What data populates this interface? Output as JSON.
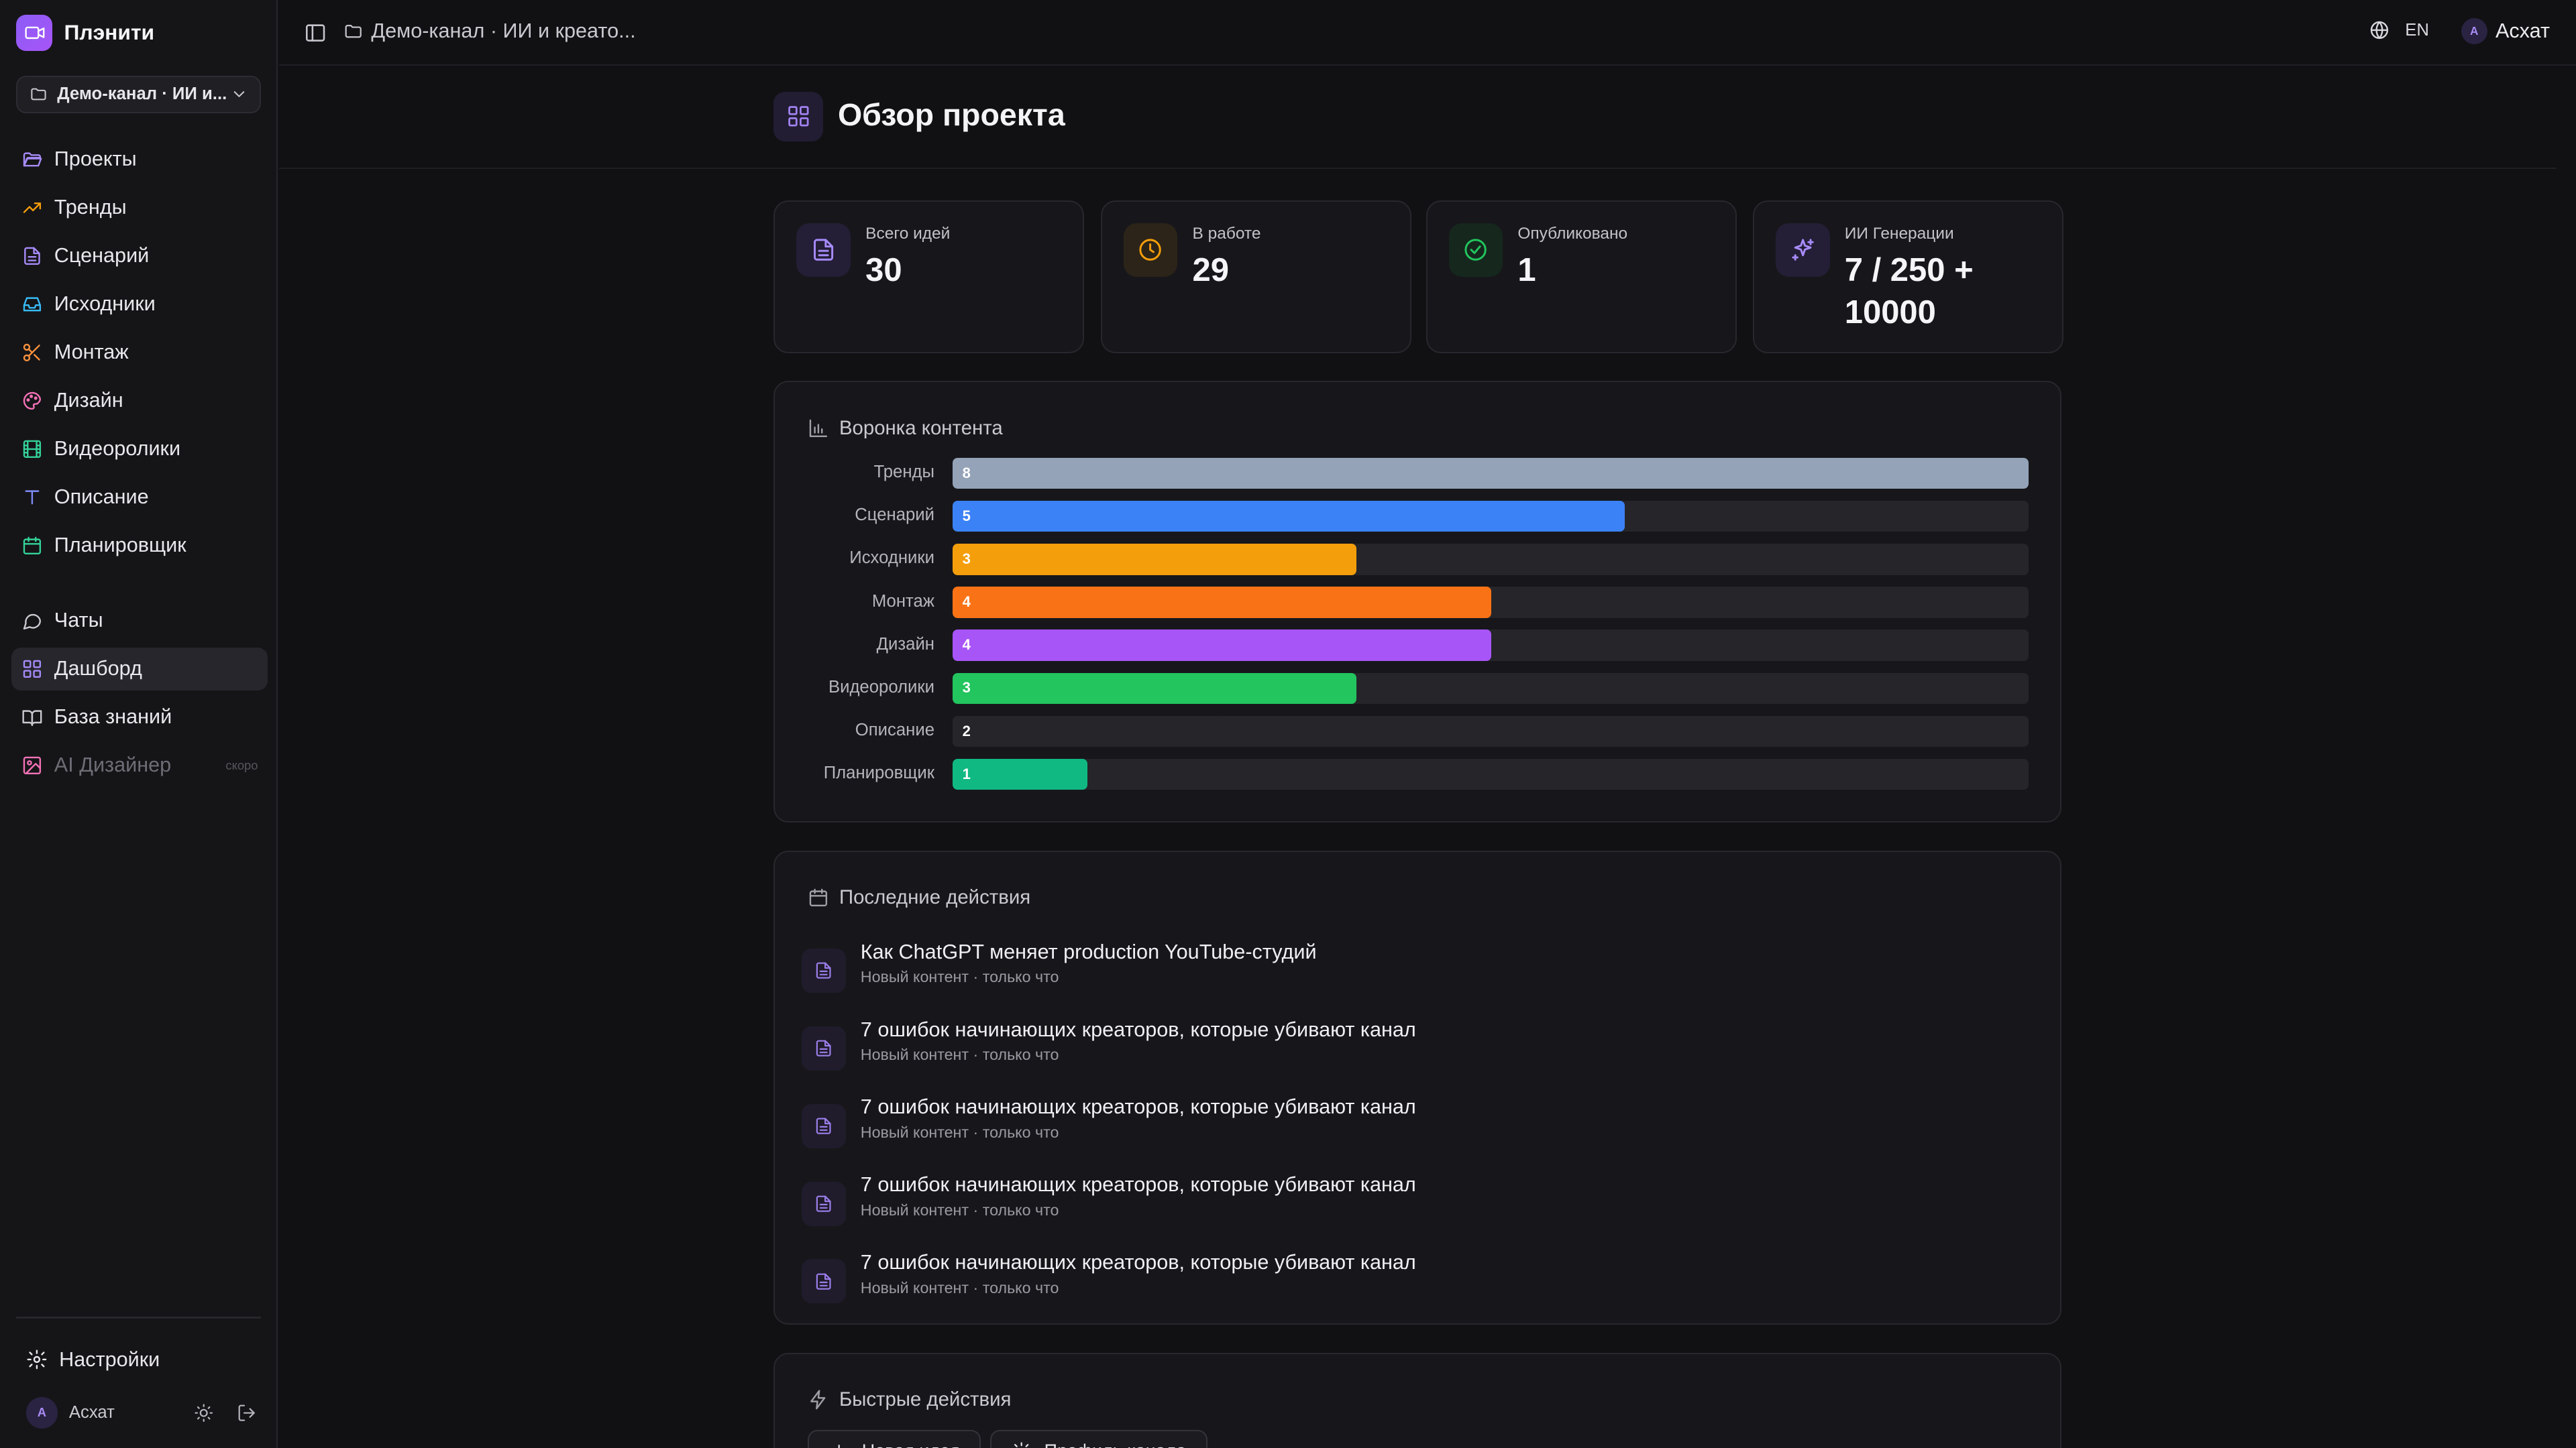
{
  "brand": {
    "name": "Плэнити"
  },
  "project_select": {
    "label": "Демо-канал · ИИ и..."
  },
  "nav_main": [
    {
      "label": "Проекты",
      "icon": "folder-open-icon",
      "color": "#a78bfa"
    },
    {
      "label": "Тренды",
      "icon": "trending-up-icon",
      "color": "#f59e0b"
    },
    {
      "label": "Сценарий",
      "icon": "file-text-icon",
      "color": "#a78bfa"
    },
    {
      "label": "Исходники",
      "icon": "inbox-icon",
      "color": "#38bdf8"
    },
    {
      "label": "Монтаж",
      "icon": "scissors-icon",
      "color": "#fb923c"
    },
    {
      "label": "Дизайн",
      "icon": "palette-icon",
      "color": "#f472b6"
    },
    {
      "label": "Видеоролики",
      "icon": "film-icon",
      "color": "#34d399"
    },
    {
      "label": "Описание",
      "icon": "type-icon",
      "color": "#818cf8"
    },
    {
      "label": "Планировщик",
      "icon": "calendar-icon",
      "color": "#34d399"
    }
  ],
  "nav_secondary": [
    {
      "label": "Чаты",
      "icon": "message-circle-icon",
      "color": "#c9c9d0"
    },
    {
      "label": "Дашборд",
      "icon": "layout-grid-icon",
      "color": "#a78bfa",
      "active": true
    },
    {
      "label": "База знаний",
      "icon": "book-open-icon",
      "color": "#c9c9d0"
    },
    {
      "label": "AI Дизайнер",
      "icon": "image-icon",
      "color": "#f472b6",
      "muted": true,
      "badge": "скоро"
    }
  ],
  "settings": {
    "label": "Настройки"
  },
  "user": {
    "initial": "A",
    "name": "Асхат"
  },
  "header": {
    "breadcrumb": "Демо-канал · ИИ и креато...",
    "language": "EN",
    "user_initial": "A",
    "user_name": "Асхат"
  },
  "page": {
    "title": "Обзор проекта"
  },
  "stats": [
    {
      "label": "Всего идей",
      "value": "30",
      "icon": "file-text-icon",
      "color": "#a78bfa",
      "bg": "#241e36"
    },
    {
      "label": "В работе",
      "value": "29",
      "icon": "clock-icon",
      "color": "#f59e0b",
      "bg": "#2c2418"
    },
    {
      "label": "Опубликовано",
      "value": "1",
      "icon": "check-circle-icon",
      "color": "#22c55e",
      "bg": "#16271d"
    },
    {
      "label": "ИИ Генерации",
      "value": "7 / 250 + 10000",
      "icon": "sparkles-icon",
      "color": "#a78bfa",
      "bg": "#241e36"
    }
  ],
  "funnel": {
    "title": "Воронка контента",
    "max": 8,
    "rows": [
      {
        "label": "Тренды",
        "value": 8,
        "color": "#94a3b8"
      },
      {
        "label": "Сценарий",
        "value": 5,
        "color": "#3b82f6"
      },
      {
        "label": "Исходники",
        "value": 3,
        "color": "#f59e0b"
      },
      {
        "label": "Монтаж",
        "value": 4,
        "color": "#f97316"
      },
      {
        "label": "Дизайн",
        "value": 4,
        "color": "#a855f7"
      },
      {
        "label": "Видеоролики",
        "value": 3,
        "color": "#22c55e"
      },
      {
        "label": "Описание",
        "value": 2,
        "color": "#25252a"
      },
      {
        "label": "Планировщик",
        "value": 1,
        "color": "#10b981"
      }
    ]
  },
  "activity": {
    "title": "Последние действия",
    "items": [
      {
        "title": "Как ChatGPT меняет production YouTube-студий",
        "subtitle": "Новый контент · только что"
      },
      {
        "title": "7 ошибок начинающих креаторов, которые убивают канал",
        "subtitle": "Новый контент · только что"
      },
      {
        "title": "7 ошибок начинающих креаторов, которые убивают канал",
        "subtitle": "Новый контент · только что"
      },
      {
        "title": "7 ошибок начинающих креаторов, которые убивают канал",
        "subtitle": "Новый контент · только что"
      },
      {
        "title": "7 ошибок начинающих креаторов, которые убивают канал",
        "subtitle": "Новый контент · только что"
      }
    ]
  },
  "quick_actions": {
    "title": "Быстрые действия",
    "buttons": [
      {
        "label": "Новая идея",
        "icon": "plus-icon"
      },
      {
        "label": "Профиль канала",
        "icon": "settings-icon"
      }
    ]
  }
}
